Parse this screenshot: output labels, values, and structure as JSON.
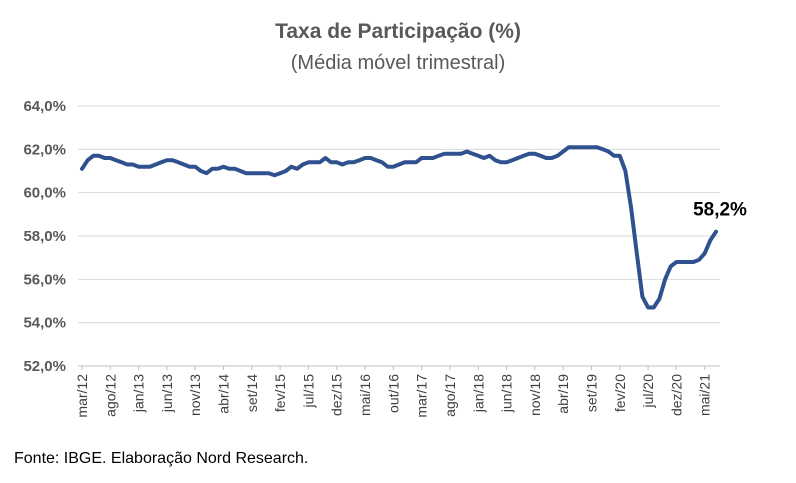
{
  "chart_data": {
    "type": "line",
    "title": "Taxa de Participação (%)",
    "subtitle": "(Média móvel trimestral)",
    "xlabel": "",
    "ylabel": "",
    "ylim": [
      52,
      64
    ],
    "yticks": [
      52,
      54,
      56,
      58,
      60,
      62,
      64
    ],
    "ytick_labels": [
      "52,0%",
      "54,0%",
      "56,0%",
      "58,0%",
      "60,0%",
      "62,0%",
      "64,0%"
    ],
    "xtick_labels": [
      "mar/12",
      "ago/12",
      "jan/13",
      "jun/13",
      "nov/13",
      "abr/14",
      "set/14",
      "fev/15",
      "jul/15",
      "dez/15",
      "mai/16",
      "out/16",
      "mar/17",
      "ago/17",
      "jan/18",
      "jun/18",
      "nov/18",
      "abr/19",
      "set/19",
      "fev/20",
      "jul/20",
      "dez/20",
      "mai/21"
    ],
    "grid": true,
    "legend": "none",
    "series_color": "#2F528F",
    "end_label": "58,2%",
    "series": [
      {
        "values": [
          61.1,
          61.5,
          61.7,
          61.7,
          61.6,
          61.6,
          61.5,
          61.4,
          61.3,
          61.3,
          61.2,
          61.2,
          61.2,
          61.3,
          61.4,
          61.5,
          61.5,
          61.4,
          61.3,
          61.2,
          61.2,
          61.0,
          60.9,
          61.1,
          61.1,
          61.2,
          61.1,
          61.1,
          61.0,
          60.9,
          60.9,
          60.9,
          60.9,
          60.9,
          60.8,
          60.9,
          61.0,
          61.2,
          61.1,
          61.3,
          61.4,
          61.4,
          61.4,
          61.6,
          61.4,
          61.4,
          61.3,
          61.4,
          61.4,
          61.5,
          61.6,
          61.6,
          61.5,
          61.4,
          61.2,
          61.2,
          61.3,
          61.4,
          61.4,
          61.4,
          61.6,
          61.6,
          61.6,
          61.7,
          61.8,
          61.8,
          61.8,
          61.8,
          61.9,
          61.8,
          61.7,
          61.6,
          61.7,
          61.5,
          61.4,
          61.4,
          61.5,
          61.6,
          61.7,
          61.8,
          61.8,
          61.7,
          61.6,
          61.6,
          61.7,
          61.9,
          62.1,
          62.1,
          62.1,
          62.1,
          62.1,
          62.1,
          62.0,
          61.9,
          61.7,
          61.7,
          61.0,
          59.3,
          57.2,
          55.2,
          54.7,
          54.7,
          55.1,
          56.0,
          56.6,
          56.8,
          56.8,
          56.8,
          56.8,
          56.9,
          57.2,
          57.8,
          58.2
        ]
      }
    ]
  },
  "source": "Fonte: IBGE. Elaboração Nord Research."
}
